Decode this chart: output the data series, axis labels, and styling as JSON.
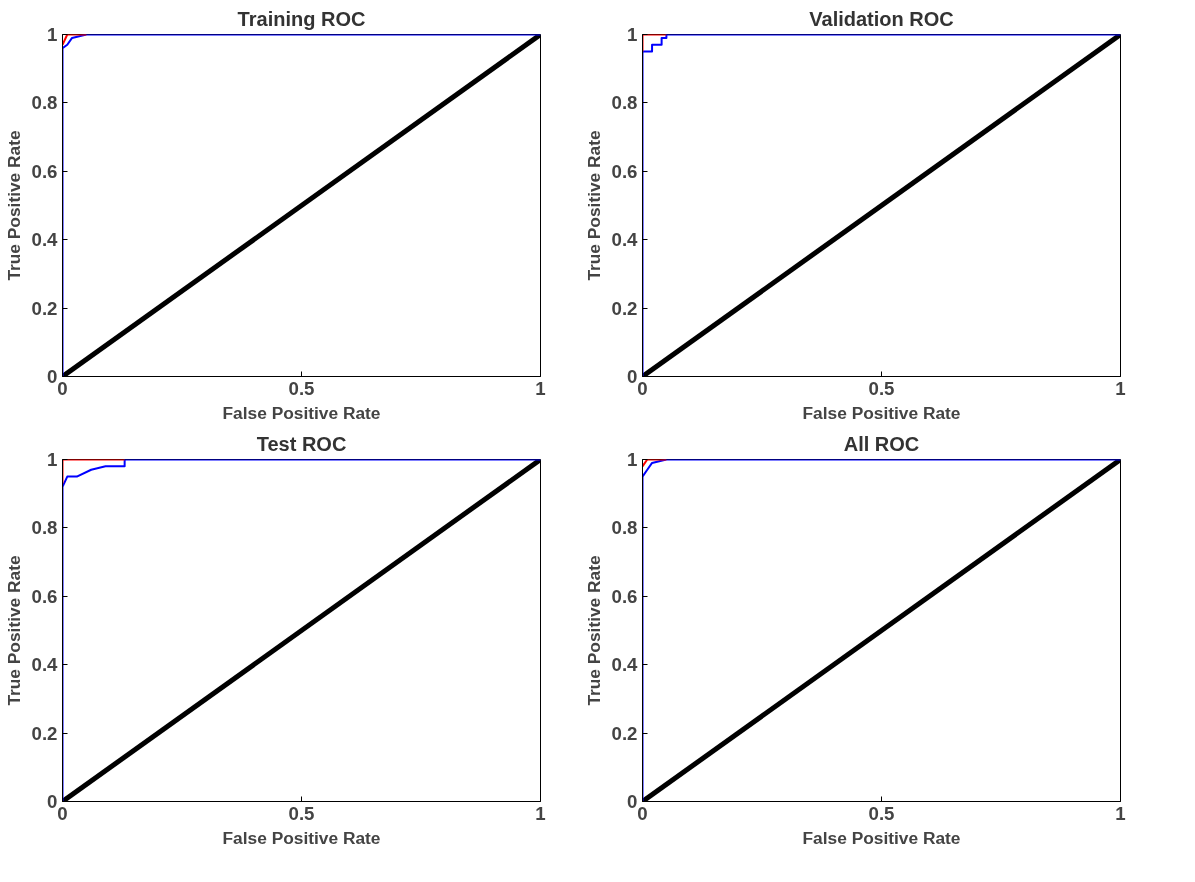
{
  "chart_data": [
    {
      "type": "line",
      "title": "Training ROC",
      "xlabel": "False Positive Rate",
      "ylabel": "True Positive Rate",
      "xlim": [
        0,
        1
      ],
      "ylim": [
        0,
        1
      ],
      "xticks": [
        0,
        0.5,
        1
      ],
      "yticks": [
        0,
        0.2,
        0.4,
        0.6,
        0.8,
        1
      ],
      "grid": false,
      "line_style": "solid",
      "marker": "none",
      "series": [
        {
          "color": "#000000",
          "x": [
            0,
            1
          ],
          "values": [
            0,
            1
          ]
        },
        {
          "color": "#0000ff",
          "x": [
            0,
            0,
            0.01,
            0.02,
            0.05,
            1
          ],
          "values": [
            0,
            0.96,
            0.97,
            0.99,
            1,
            1
          ]
        },
        {
          "color": "#ff0000",
          "x": [
            0,
            0.01,
            0.05
          ],
          "values": [
            0.97,
            1,
            1
          ]
        }
      ]
    },
    {
      "type": "line",
      "title": "Validation ROC",
      "xlabel": "False Positive Rate",
      "ylabel": "True Positive Rate",
      "xlim": [
        0,
        1
      ],
      "ylim": [
        0,
        1
      ],
      "xticks": [
        0,
        0.5,
        1
      ],
      "yticks": [
        0,
        0.2,
        0.4,
        0.6,
        0.8,
        1
      ],
      "grid": false,
      "line_style": "solid",
      "marker": "none",
      "series": [
        {
          "color": "#000000",
          "x": [
            0,
            1
          ],
          "values": [
            0,
            1
          ]
        },
        {
          "color": "#0000ff",
          "x": [
            0,
            0,
            0.02,
            0.02,
            0.04,
            0.04,
            0.05,
            0.05,
            1
          ],
          "values": [
            0,
            0.95,
            0.95,
            0.97,
            0.97,
            0.99,
            0.99,
            1,
            1
          ]
        },
        {
          "color": "#ff0000",
          "x": [
            0,
            0,
            0.05
          ],
          "values": [
            0.95,
            1,
            1
          ]
        }
      ]
    },
    {
      "type": "line",
      "title": "Test ROC",
      "xlabel": "False Positive Rate",
      "ylabel": "True Positive Rate",
      "xlim": [
        0,
        1
      ],
      "ylim": [
        0,
        1
      ],
      "xticks": [
        0,
        0.5,
        1
      ],
      "yticks": [
        0,
        0.2,
        0.4,
        0.6,
        0.8,
        1
      ],
      "grid": false,
      "line_style": "solid",
      "marker": "none",
      "series": [
        {
          "color": "#000000",
          "x": [
            0,
            1
          ],
          "values": [
            0,
            1
          ]
        },
        {
          "color": "#0000ff",
          "x": [
            0,
            0,
            0.01,
            0.03,
            0.06,
            0.09,
            0.13,
            0.13,
            1
          ],
          "values": [
            0,
            0.92,
            0.95,
            0.95,
            0.97,
            0.98,
            0.98,
            1,
            1
          ]
        },
        {
          "color": "#ff0000",
          "x": [
            0,
            0,
            0.13
          ],
          "values": [
            0.93,
            1,
            1
          ]
        }
      ]
    },
    {
      "type": "line",
      "title": "All ROC",
      "xlabel": "False Positive Rate",
      "ylabel": "True Positive Rate",
      "xlim": [
        0,
        1
      ],
      "ylim": [
        0,
        1
      ],
      "xticks": [
        0,
        0.5,
        1
      ],
      "yticks": [
        0,
        0.2,
        0.4,
        0.6,
        0.8,
        1
      ],
      "grid": false,
      "line_style": "solid",
      "marker": "none",
      "series": [
        {
          "color": "#000000",
          "x": [
            0,
            1
          ],
          "values": [
            0,
            1
          ]
        },
        {
          "color": "#0000ff",
          "x": [
            0,
            0,
            0.01,
            0.02,
            0.05,
            1
          ],
          "values": [
            0,
            0.95,
            0.97,
            0.99,
            1,
            1
          ]
        },
        {
          "color": "#ff0000",
          "x": [
            0,
            0.01,
            0.05
          ],
          "values": [
            0.98,
            1,
            1
          ]
        }
      ]
    }
  ]
}
